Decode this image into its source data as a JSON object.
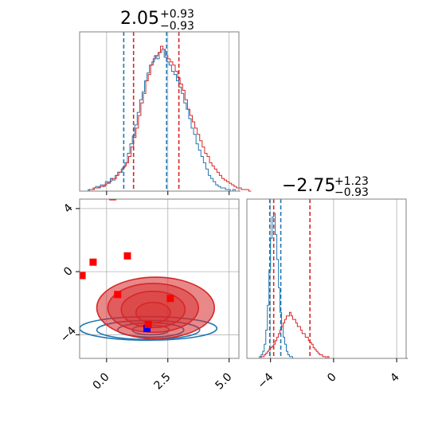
{
  "chart_data": {
    "type": "corner",
    "grid": true,
    "params": [
      {
        "title_value": "2.05",
        "title_plus": "+0.93",
        "title_minus": "−0.93",
        "range": [
          -1.1,
          5.4
        ],
        "ticks": [
          {
            "v": 0.0,
            "label": "0.0"
          },
          {
            "v": 2.5,
            "label": "2.5"
          },
          {
            "v": 5.0,
            "label": "5.0"
          }
        ]
      },
      {
        "title_value": "−2.75",
        "title_plus": "+1.23",
        "title_minus": "−0.93",
        "range": [
          -5.5,
          4.6
        ],
        "ticks": [
          {
            "v": -4,
            "label": "−4"
          },
          {
            "v": 0,
            "label": "0"
          },
          {
            "v": 4,
            "label": "4"
          }
        ]
      }
    ],
    "series": [
      {
        "color": "#1f77b4",
        "fill": "#1f77b4",
        "filled_contours": false,
        "param1_quantiles": [
          0.7,
          2.45
        ],
        "param2_quantiles": [
          -4.05,
          -3.35
        ],
        "hist1": {
          "start": -1.05,
          "width": 0.1,
          "counts": [
            0,
            0,
            0,
            1,
            1,
            2,
            3,
            2,
            4,
            3,
            6,
            5,
            8,
            7,
            10,
            12,
            12,
            15,
            18,
            24,
            30,
            35,
            42,
            50,
            58,
            63,
            70,
            75,
            80,
            82,
            86,
            84,
            88,
            90,
            85,
            82,
            80,
            76,
            74,
            70,
            66,
            62,
            56,
            52,
            46,
            40,
            36,
            30,
            26,
            22,
            18,
            14,
            10,
            8,
            6,
            4,
            3,
            2,
            2,
            1,
            1,
            0,
            1,
            0,
            0
          ]
        },
        "hist2": {
          "start": -5.4,
          "width": 0.1,
          "counts": [
            0,
            0,
            0,
            0,
            0,
            0,
            0,
            1,
            2,
            4,
            8,
            16,
            30,
            50,
            68,
            80,
            82,
            70,
            56,
            40,
            26,
            18,
            12,
            8,
            4,
            2,
            1,
            1,
            0,
            0,
            0,
            0,
            0,
            0,
            0,
            0,
            0,
            0,
            0,
            0,
            0,
            0,
            0,
            0,
            0,
            0,
            0,
            0,
            0,
            0,
            0,
            0,
            0,
            0,
            0,
            0,
            0,
            0,
            0,
            0,
            0,
            0,
            0,
            0,
            0,
            0,
            0,
            0,
            0,
            0,
            0,
            0,
            0,
            0,
            0,
            0,
            0,
            0,
            0,
            0,
            0,
            0,
            0,
            0,
            0,
            0,
            0,
            0,
            0,
            0,
            0,
            0,
            0,
            0,
            0,
            0,
            0,
            0,
            0,
            0,
            0
          ]
        },
        "contours": [
          {
            "cx": 1.8,
            "cy": -3.7,
            "rx": 0.75,
            "ry": 0.3
          },
          {
            "cx": 1.8,
            "cy": -3.7,
            "rx": 1.35,
            "ry": 0.45
          },
          {
            "cx": 1.7,
            "cy": -3.7,
            "rx": 2.1,
            "ry": 0.6
          },
          {
            "cx": 1.7,
            "cy": -3.6,
            "rx": 2.8,
            "ry": 0.75
          }
        ],
        "markers": [
          {
            "x": 1.65,
            "y": -3.6
          }
        ]
      },
      {
        "color": "#d62728",
        "fill": "#d62728",
        "filled_contours": true,
        "param1_quantiles": [
          1.1,
          2.95
        ],
        "param2_quantiles": [
          -3.8,
          -1.5
        ],
        "hist1": {
          "start": -0.8,
          "width": 0.1,
          "counts": [
            0,
            1,
            1,
            2,
            2,
            3,
            3,
            4,
            5,
            6,
            8,
            8,
            10,
            12,
            14,
            16,
            18,
            22,
            28,
            34,
            40,
            48,
            56,
            62,
            70,
            74,
            80,
            84,
            86,
            88,
            92,
            90,
            86,
            84,
            82,
            80,
            76,
            72,
            68,
            64,
            58,
            52,
            48,
            44,
            40,
            36,
            32,
            28,
            24,
            22,
            18,
            16,
            14,
            12,
            10,
            8,
            7,
            6,
            5,
            4,
            3,
            2,
            2,
            1,
            1,
            1,
            0
          ]
        },
        "hist2": {
          "start": -5.3,
          "width": 0.1,
          "counts": [
            0,
            0,
            0,
            0,
            0,
            0,
            0,
            1,
            1,
            2,
            3,
            4,
            5,
            6,
            7,
            8,
            10,
            12,
            14,
            16,
            18,
            20,
            22,
            24,
            24,
            26,
            24,
            22,
            22,
            20,
            18,
            18,
            16,
            14,
            14,
            12,
            12,
            10,
            9,
            8,
            6,
            5,
            4,
            3,
            2,
            2,
            1,
            1,
            0,
            1,
            0,
            0,
            0,
            0,
            0,
            0,
            0,
            0,
            0,
            0
          ]
        },
        "contours": [
          {
            "cx": 1.9,
            "cy": -2.6,
            "rx": 0.7,
            "ry": 0.65
          },
          {
            "cx": 1.9,
            "cy": -2.4,
            "rx": 1.3,
            "ry": 1.15
          },
          {
            "cx": 1.9,
            "cy": -2.3,
            "rx": 1.85,
            "ry": 1.55
          },
          {
            "cx": 2.0,
            "cy": -2.3,
            "rx": 2.4,
            "ry": 1.95
          }
        ],
        "markers": [
          {
            "x": -1.0,
            "y": -0.25
          },
          {
            "x": -0.55,
            "y": 0.6
          },
          {
            "x": 0.85,
            "y": 1.0
          },
          {
            "x": 0.45,
            "y": -1.45
          },
          {
            "x": 1.7,
            "y": -3.35
          },
          {
            "x": 2.6,
            "y": -1.7
          },
          {
            "x": 0.25,
            "y": 4.75
          }
        ]
      }
    ]
  }
}
